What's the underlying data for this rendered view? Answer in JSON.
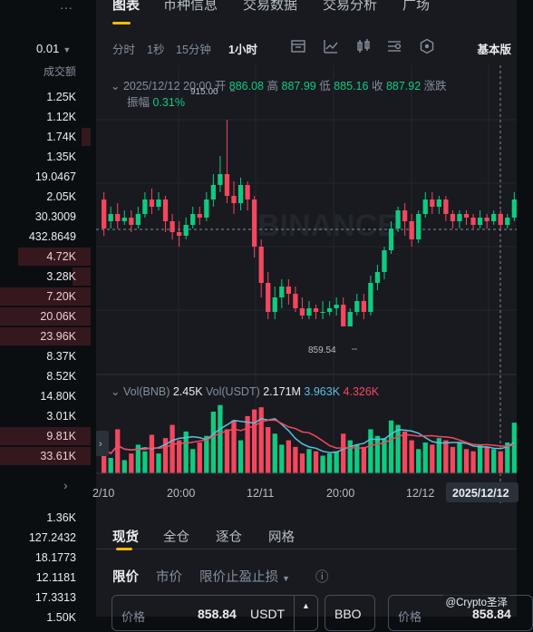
{
  "left_panel": {
    "more_label": "···",
    "precision": "0.01",
    "column_title": "成交额",
    "ask_rows": [
      "1.25K",
      "1.12K",
      "1.74K",
      "1.35K",
      "19.0467",
      "2.05K",
      "30.3009",
      "432.8649",
      "4.72K",
      "3.28K",
      "7.20K",
      "20.06K",
      "23.96K",
      "8.37K",
      "8.52K",
      "14.80K",
      "3.01K",
      "9.81K",
      "33.61K"
    ],
    "bid_rows": [
      "1.36K",
      "127.2432",
      "18.1773",
      "12.1181",
      "17.3313",
      "1.50K"
    ],
    "expand_label": "›"
  },
  "nav": {
    "items": [
      "图表",
      "币种信息",
      "交易数据",
      "交易分析",
      "广场"
    ]
  },
  "toolbar": {
    "intervals": [
      "分时",
      "1秒",
      "15分钟",
      "1小时"
    ],
    "active_interval": "1小时",
    "basic_label": "基本版"
  },
  "ohlc": {
    "datetime": "2025/12/12 20:00",
    "open_label": "开",
    "open": "886.08",
    "high_label": "高",
    "high": "887.99",
    "low_label": "低",
    "low": "885.16",
    "close_label": "收",
    "close": "887.92",
    "change_label": "涨跌",
    "amp_label": "振幅",
    "amp": "0.31%"
  },
  "chart_data": {
    "type": "candlestick",
    "high_marker": "915.00",
    "low_marker": "859.54",
    "price_range": [
      850,
      925
    ],
    "x_ticks": [
      "2/10",
      "20:00",
      "12/11",
      "20:00",
      "12/12"
    ],
    "current_time_tag": "2025/12/12",
    "colors": {
      "up": "#0ecb81",
      "down": "#f6465d",
      "line": "#5e6673"
    },
    "watermark": "BINANCE",
    "volume": {
      "label": "Vol(BNB)",
      "value": "2.45K",
      "label2": "Vol(USDT)",
      "value2": "2.171M",
      "ma1": "3.963K",
      "ma2": "4.326K"
    }
  },
  "order_tabs": [
    "现货",
    "全仓",
    "逐仓",
    "网格"
  ],
  "order_types": {
    "limit": "限价",
    "market": "市价",
    "stop": "限价止盈止损",
    "info_icon": "ⓘ"
  },
  "price_input": {
    "placeholder": "价格",
    "value": "858.84",
    "unit": "USDT"
  },
  "bbo_label": "BBO",
  "right_input": {
    "placeholder": "价格",
    "value": "858.84"
  },
  "source_tag": "@Crypto圣泽"
}
